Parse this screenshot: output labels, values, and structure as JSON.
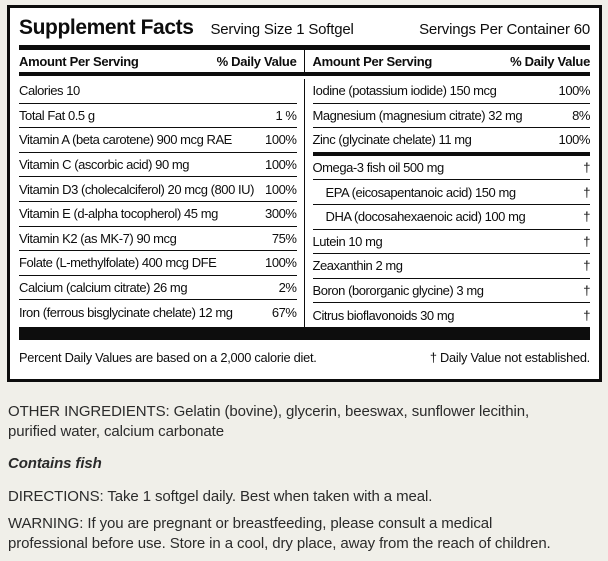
{
  "panel": {
    "title": "Supplement Facts",
    "serving_size": "Serving Size 1 Softgel",
    "servings_per_container": "Servings Per Container 60",
    "amount_header": "Amount Per Serving",
    "dv_header": "% Daily Value",
    "left_rows": [
      {
        "name": "Calories 10",
        "value": ""
      },
      {
        "name": "Total Fat  0.5 g",
        "value": "1 %"
      },
      {
        "name": "Vitamin A (beta carotene) 900 mcg RAE",
        "value": "100%"
      },
      {
        "name": "Vitamin C (ascorbic acid) 90 mg",
        "value": "100%"
      },
      {
        "name": "Vitamin D3 (cholecalciferol) 20 mcg (800 IU)",
        "value": "100%"
      },
      {
        "name": "Vitamin E (d-alpha tocopherol) 45 mg",
        "value": "300%"
      },
      {
        "name": "Vitamin K2 (as MK-7) 90 mcg",
        "value": "75%"
      },
      {
        "name": "Folate (L-methylfolate) 400 mcg DFE",
        "value": "100%"
      },
      {
        "name": "Calcium (calcium citrate) 26 mg",
        "value": "2%"
      },
      {
        "name": "Iron (ferrous bisglycinate chelate) 12 mg",
        "value": "67%"
      }
    ],
    "right_rows": [
      {
        "name": "Iodine (potassium iodide) 150 mcg",
        "value": "100%"
      },
      {
        "name": "Magnesium (magnesium citrate) 32 mg",
        "value": "8%"
      },
      {
        "name": "Zinc (glycinate chelate) 11 mg",
        "value": "100%"
      },
      {
        "name": "Omega-3 fish oil 500 mg",
        "value": "†",
        "thick_top": true
      },
      {
        "name": "EPA (eicosapentanoic acid) 150 mg",
        "value": "†",
        "indent": true
      },
      {
        "name": "DHA (docosahexaenoic acid) 100 mg",
        "value": "†",
        "indent": true
      },
      {
        "name": "Lutein 10 mg",
        "value": "†"
      },
      {
        "name": "Zeaxanthin 2 mg",
        "value": "†"
      },
      {
        "name": "Boron (bororganic glycine) 3 mg",
        "value": "†"
      },
      {
        "name": "Citrus bioflavonoids 30 mg",
        "value": "†"
      }
    ],
    "footnote_left": "Percent Daily Values are based on a 2,000 calorie diet.",
    "footnote_right": "† Daily Value not established."
  },
  "below": {
    "other_ingredients": "OTHER INGREDIENTS: Gelatin (bovine), glycerin, beeswax, sunflower lecithin,\npurified water, calcium carbonate",
    "contains": "Contains fish",
    "directions": "DIRECTIONS: Take 1 softgel daily. Best when taken with a meal.",
    "warning": "WARNING: If you are pregnant or breastfeeding, please consult a medical\nprofessional before use. Store in a cool, dry place, away from the reach of children."
  },
  "colors": {
    "background": "#f0efe9",
    "panel_background": "#ffffff",
    "ink": "#0d0d0d"
  }
}
